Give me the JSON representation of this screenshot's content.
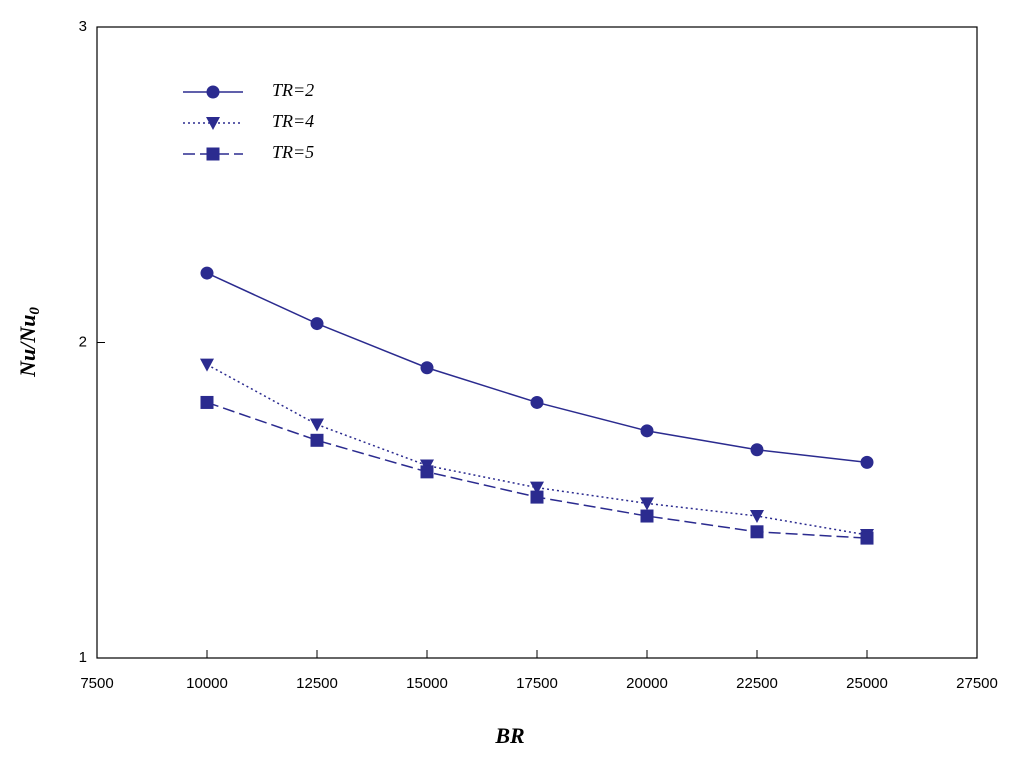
{
  "chart_data": {
    "type": "line",
    "xlabel": "BR",
    "ylabel": {
      "main": "Nu/Nu",
      "subscript": "0"
    },
    "x": [
      10000,
      12500,
      15000,
      17500,
      20000,
      22500,
      25000
    ],
    "series": [
      {
        "name": "TR=2",
        "color": "#2b2b8f",
        "marker": "circle",
        "dash": "solid",
        "values": [
          2.22,
          2.06,
          1.92,
          1.81,
          1.72,
          1.66,
          1.62
        ]
      },
      {
        "name": "TR=4",
        "color": "#2b2b8f",
        "marker": "triangle-down",
        "dash": "dotted",
        "values": [
          1.93,
          1.74,
          1.61,
          1.54,
          1.49,
          1.45,
          1.39
        ]
      },
      {
        "name": "TR=5",
        "color": "#2b2b8f",
        "marker": "square",
        "dash": "dashed",
        "values": [
          1.81,
          1.69,
          1.59,
          1.51,
          1.45,
          1.4,
          1.38
        ]
      }
    ],
    "xlim": [
      7500,
      27500
    ],
    "xticks": [
      7500,
      10000,
      12500,
      15000,
      17500,
      20000,
      22500,
      25000,
      27500
    ],
    "ylim": [
      1,
      3
    ],
    "yticks": [
      1,
      2,
      3
    ],
    "legend": "upper-left"
  }
}
